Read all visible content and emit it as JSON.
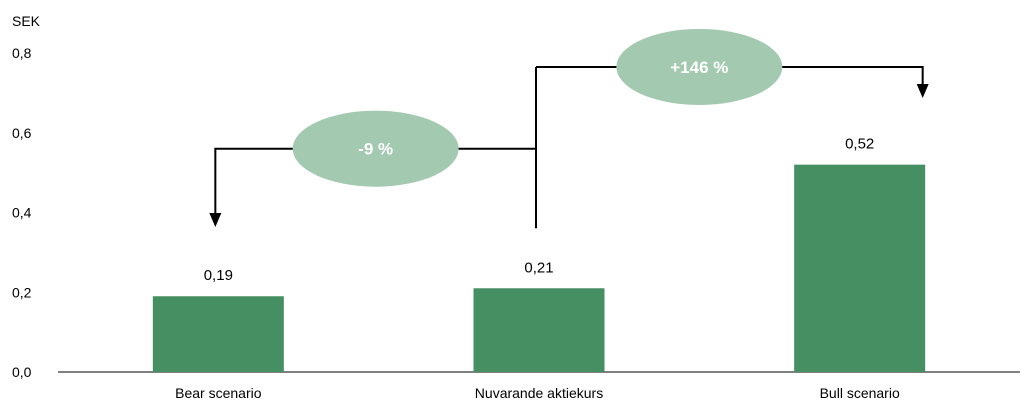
{
  "chart_data": {
    "type": "bar",
    "unit_label": "SEK",
    "categories": [
      "Bear scenario",
      "Nuvarande aktiekurs",
      "Bull scenario"
    ],
    "values": [
      0.19,
      0.21,
      0.52
    ],
    "data_labels": [
      "0,19",
      "0,21",
      "0,52"
    ],
    "y_ticks": [
      0,
      0.2,
      0.4,
      0.6,
      0.8
    ],
    "y_tick_labels": [
      "0,0",
      "0,2",
      "0,4",
      "0,6",
      "0,8"
    ],
    "ylim": [
      0,
      0.8
    ],
    "grid": false,
    "bar_color": "#468f63",
    "annotations": [
      {
        "label": "-9 %",
        "from": "Nuvarande aktiekurs",
        "to": "Bear scenario",
        "level": 0.56
      },
      {
        "label": "+146 %",
        "from": "Nuvarande aktiekurs",
        "to": "Bull scenario",
        "level": 0.765
      }
    ],
    "annotation_color": "#a3c9b0"
  }
}
